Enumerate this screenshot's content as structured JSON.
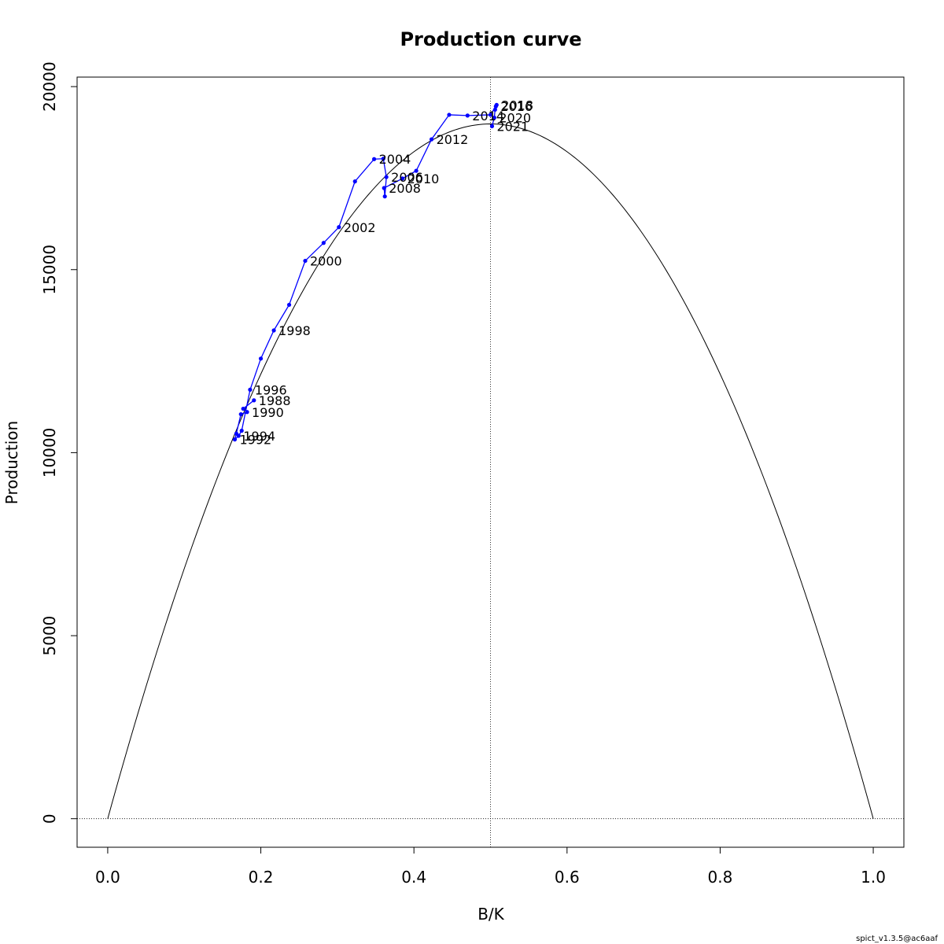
{
  "chart_data": {
    "type": "line",
    "title": "Production curve",
    "xlabel": "B/K",
    "ylabel": "Production",
    "xlim": [
      -0.04,
      1.04
    ],
    "ylim": [
      -780,
      20260
    ],
    "xticks": [
      "0.0",
      "0.2",
      "0.4",
      "0.6",
      "0.8",
      "1.0"
    ],
    "yticks": [
      "0",
      "5000",
      "10000",
      "15000",
      "20000"
    ],
    "grid": false,
    "reference_lines": {
      "vertical_x": 0.5,
      "horizontal_y": 0
    },
    "theoretical_curve": {
      "description_visible": false,
      "max_production": 18980,
      "bmsy_over_k": 0.5,
      "color": "#000000"
    },
    "series": [
      {
        "color": "#0000ff",
        "x": [
          0.191,
          0.177,
          0.182,
          0.174,
          0.168,
          0.166,
          0.171,
          0.175,
          0.186,
          0.2,
          0.217,
          0.237,
          0.258,
          0.282,
          0.302,
          0.323,
          0.348,
          0.36,
          0.364,
          0.362,
          0.361,
          0.385,
          0.403,
          0.423,
          0.446,
          0.47,
          0.5,
          0.507,
          0.508,
          0.506,
          0.505,
          0.502
        ],
        "y": [
          11430,
          11200,
          11110,
          11050,
          10520,
          10360,
          10460,
          10600,
          11720,
          12570,
          13340,
          14040,
          15240,
          15730,
          16160,
          17410,
          18020,
          18030,
          17530,
          17000,
          17230,
          17490,
          17700,
          18560,
          19230,
          19210,
          19230,
          19460,
          19500,
          19370,
          19150,
          18920
        ]
      }
    ],
    "point_labels": [
      {
        "year": "1988",
        "x": 0.191,
        "y": 11430
      },
      {
        "year": "1990",
        "x": 0.182,
        "y": 11110
      },
      {
        "year": "1992",
        "x": 0.166,
        "y": 10360
      },
      {
        "year": "1994",
        "x": 0.171,
        "y": 10460
      },
      {
        "year": "1996",
        "x": 0.186,
        "y": 11720
      },
      {
        "year": "1998",
        "x": 0.217,
        "y": 13340
      },
      {
        "year": "2000",
        "x": 0.258,
        "y": 15240
      },
      {
        "year": "2002",
        "x": 0.302,
        "y": 16160
      },
      {
        "year": "2004",
        "x": 0.348,
        "y": 18020
      },
      {
        "year": "2006",
        "x": 0.364,
        "y": 17530
      },
      {
        "year": "2008",
        "x": 0.361,
        "y": 17230
      },
      {
        "year": "2010",
        "x": 0.385,
        "y": 17490
      },
      {
        "year": "2012",
        "x": 0.423,
        "y": 18560
      },
      {
        "year": "2014",
        "x": 0.47,
        "y": 19210
      },
      {
        "year": "2016",
        "x": 0.507,
        "y": 19460
      },
      {
        "year": "2018",
        "x": 0.508,
        "y": 19500
      },
      {
        "year": "2020",
        "x": 0.505,
        "y": 19150
      },
      {
        "year": "2021",
        "x": 0.502,
        "y": 18920
      }
    ],
    "footer_note": "spict_v1.3.5@ac6aaf"
  }
}
